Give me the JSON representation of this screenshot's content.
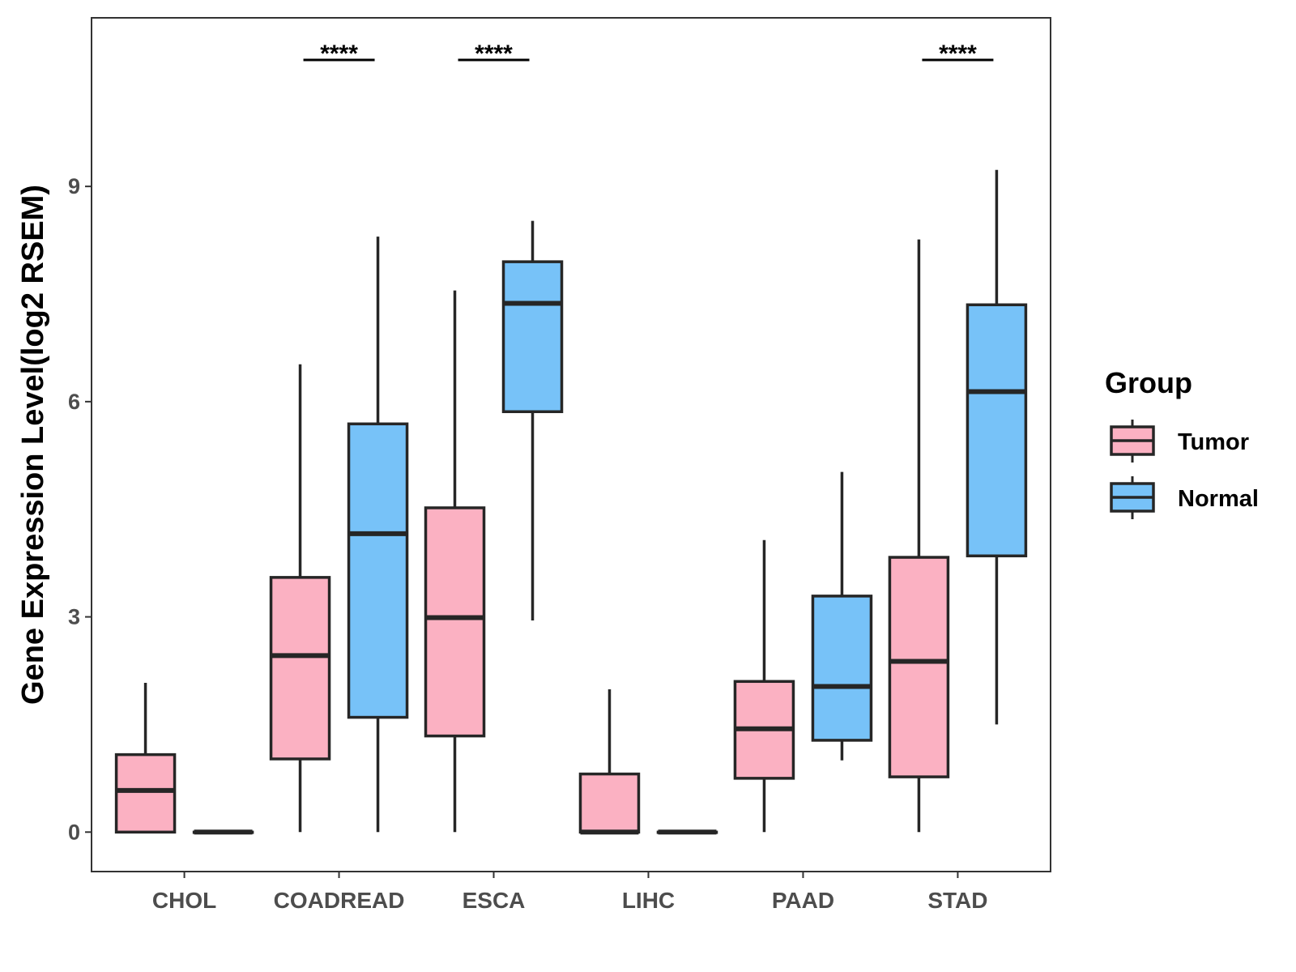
{
  "chart_data": {
    "type": "boxplot",
    "ylabel": "Gene Expression Level(log2 RSEM)",
    "xlabel": "",
    "ylim": [
      -0.55,
      11.35
    ],
    "yticks": [
      0,
      3,
      6,
      9
    ],
    "ytick_labels": [
      "0",
      "3",
      "6",
      "9"
    ],
    "categories": [
      "CHOL",
      "COADREAD",
      "ESCA",
      "LIHC",
      "PAAD",
      "STAD"
    ],
    "legend": {
      "title": "Group",
      "position": "right",
      "entries": [
        {
          "name": "Tumor",
          "color": "#FBB1C2"
        },
        {
          "name": "Normal",
          "color": "#77C2F8"
        }
      ]
    },
    "series": [
      {
        "name": "Tumor",
        "color": "#FBB1C2",
        "boxes": [
          {
            "min": 0.0,
            "q1": 0.0,
            "median": 0.58,
            "q3": 1.08,
            "max": 2.08
          },
          {
            "min": 0.0,
            "q1": 1.02,
            "median": 2.46,
            "q3": 3.55,
            "max": 6.52
          },
          {
            "min": 0.0,
            "q1": 1.34,
            "median": 2.99,
            "q3": 4.52,
            "max": 7.55
          },
          {
            "min": 0.0,
            "q1": 0.0,
            "median": 0.0,
            "q3": 0.81,
            "max": 1.99
          },
          {
            "min": 0.0,
            "q1": 0.75,
            "median": 1.44,
            "q3": 2.1,
            "max": 4.07
          },
          {
            "min": 0.0,
            "q1": 0.77,
            "median": 2.38,
            "q3": 3.83,
            "max": 8.26
          }
        ]
      },
      {
        "name": "Normal",
        "color": "#77C2F8",
        "boxes": [
          {
            "min": 0.0,
            "q1": 0.0,
            "median": 0.0,
            "q3": 0.0,
            "max": 0.0
          },
          {
            "min": 0.0,
            "q1": 1.6,
            "median": 4.16,
            "q3": 5.69,
            "max": 8.3
          },
          {
            "min": 2.95,
            "q1": 5.86,
            "median": 7.37,
            "q3": 7.95,
            "max": 8.52
          },
          {
            "min": 0.0,
            "q1": 0.0,
            "median": 0.0,
            "q3": 0.0,
            "max": 0.0
          },
          {
            "min": 1.0,
            "q1": 1.28,
            "median": 2.03,
            "q3": 3.29,
            "max": 5.02
          },
          {
            "min": 1.5,
            "q1": 3.85,
            "median": 6.14,
            "q3": 7.35,
            "max": 9.23
          }
        ]
      }
    ],
    "significance": [
      {
        "category": "CHOL",
        "label": ""
      },
      {
        "category": "COADREAD",
        "label": "****"
      },
      {
        "category": "ESCA",
        "label": "****"
      },
      {
        "category": "LIHC",
        "label": ""
      },
      {
        "category": "PAAD",
        "label": ""
      },
      {
        "category": "STAD",
        "label": "****"
      }
    ]
  }
}
